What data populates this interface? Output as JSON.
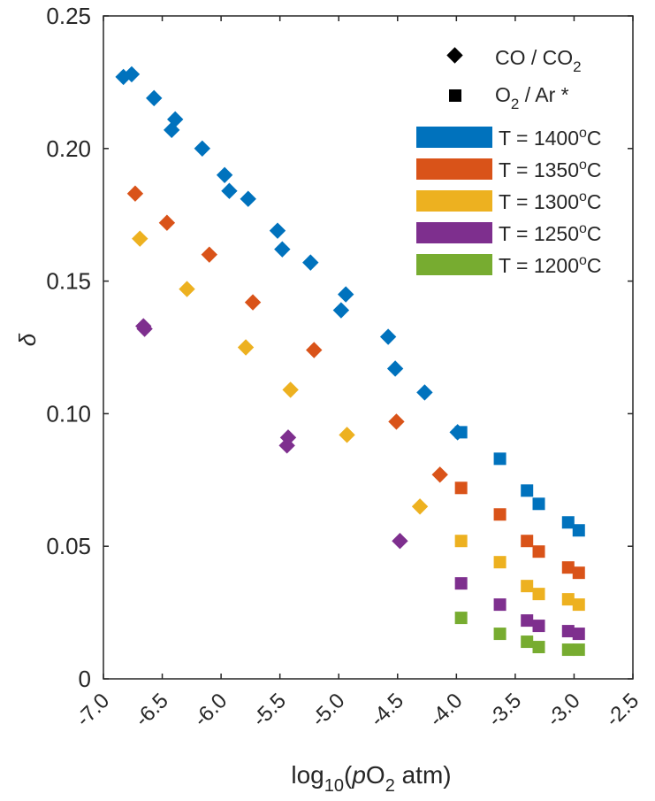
{
  "chart_data": {
    "type": "scatter",
    "xlabel": {
      "prefix": "log",
      "sub1": "10",
      "open": "(",
      "italic": "p",
      "mid": "O",
      "sub2": "2",
      "rest": " atm)"
    },
    "ylabel": "δ",
    "xlim": [
      -7.0,
      -2.5
    ],
    "ylim": [
      0,
      0.25
    ],
    "x_ticks": [
      "-7.0",
      "-6.5",
      "-6.0",
      "-5.5",
      "-5.0",
      "-4.5",
      "-4.0",
      "-3.5",
      "-3.0",
      "-2.5"
    ],
    "x_tick_values": [
      -7.0,
      -6.5,
      -6.0,
      -5.5,
      -5.0,
      -4.5,
      -4.0,
      -3.5,
      -3.0,
      -2.5
    ],
    "y_ticks": [
      "0",
      "0.05",
      "0.10",
      "0.15",
      "0.20",
      "0.25"
    ],
    "y_tick_values": [
      0,
      0.05,
      0.1,
      0.15,
      0.2,
      0.25
    ],
    "grid": false,
    "box": true,
    "legend_position": "top-right",
    "marker_legend": [
      {
        "marker": "diamond",
        "label_main": "CO / CO",
        "label_sub": "2",
        "label_tail": ""
      },
      {
        "marker": "square",
        "label_main": "O",
        "label_sub": "2",
        "label_tail": " / Ar *"
      }
    ],
    "series": [
      {
        "name": "T = 1400°C",
        "label_pre": "T = 1400",
        "label_sup": "o",
        "label_post": "C",
        "color": "#0072BD",
        "diamonds": [
          [
            -6.83,
            0.227
          ],
          [
            -6.76,
            0.228
          ],
          [
            -6.57,
            0.219
          ],
          [
            -6.39,
            0.211
          ],
          [
            -6.42,
            0.207
          ],
          [
            -6.16,
            0.2
          ],
          [
            -5.97,
            0.19
          ],
          [
            -5.93,
            0.184
          ],
          [
            -5.77,
            0.181
          ],
          [
            -5.52,
            0.169
          ],
          [
            -5.48,
            0.162
          ],
          [
            -5.24,
            0.157
          ],
          [
            -4.98,
            0.139
          ],
          [
            -4.94,
            0.145
          ],
          [
            -4.58,
            0.129
          ],
          [
            -4.52,
            0.117
          ],
          [
            -4.27,
            0.108
          ],
          [
            -3.99,
            0.093
          ]
        ],
        "squares": [
          [
            -3.96,
            0.093
          ],
          [
            -3.63,
            0.083
          ],
          [
            -3.4,
            0.071
          ],
          [
            -3.3,
            0.066
          ],
          [
            -3.05,
            0.059
          ],
          [
            -2.96,
            0.056
          ]
        ]
      },
      {
        "name": "T = 1350°C",
        "label_pre": "T = 1350",
        "label_sup": "o",
        "label_post": "C",
        "color": "#D95319",
        "diamonds": [
          [
            -6.73,
            0.183
          ],
          [
            -6.46,
            0.172
          ],
          [
            -6.1,
            0.16
          ],
          [
            -5.73,
            0.142
          ],
          [
            -5.21,
            0.124
          ],
          [
            -4.51,
            0.097
          ],
          [
            -4.14,
            0.077
          ]
        ],
        "squares": [
          [
            -3.96,
            0.072
          ],
          [
            -3.63,
            0.062
          ],
          [
            -3.4,
            0.052
          ],
          [
            -3.3,
            0.048
          ],
          [
            -3.05,
            0.042
          ],
          [
            -2.96,
            0.04
          ]
        ]
      },
      {
        "name": "T = 1300°C",
        "label_pre": "T = 1300",
        "label_sup": "o",
        "label_post": "C",
        "color": "#EDB120",
        "diamonds": [
          [
            -6.69,
            0.166
          ],
          [
            -6.29,
            0.147
          ],
          [
            -5.79,
            0.125
          ],
          [
            -5.41,
            0.109
          ],
          [
            -4.93,
            0.092
          ],
          [
            -4.31,
            0.065
          ]
        ],
        "squares": [
          [
            -3.96,
            0.052
          ],
          [
            -3.63,
            0.044
          ],
          [
            -3.4,
            0.035
          ],
          [
            -3.3,
            0.032
          ],
          [
            -3.05,
            0.03
          ],
          [
            -2.96,
            0.028
          ]
        ]
      },
      {
        "name": "T = 1250°C",
        "label_pre": "T = 1250",
        "label_sup": "o",
        "label_post": "C",
        "color": "#7E2F8E",
        "diamonds": [
          [
            -6.66,
            0.133
          ],
          [
            -6.65,
            0.132
          ],
          [
            -5.43,
            0.091
          ],
          [
            -5.44,
            0.088
          ],
          [
            -4.48,
            0.052
          ]
        ],
        "squares": [
          [
            -3.96,
            0.036
          ],
          [
            -3.63,
            0.028
          ],
          [
            -3.4,
            0.022
          ],
          [
            -3.3,
            0.02
          ],
          [
            -3.05,
            0.018
          ],
          [
            -2.96,
            0.017
          ]
        ]
      },
      {
        "name": "T = 1200°C",
        "label_pre": "T = 1200",
        "label_sup": "o",
        "label_post": "C",
        "color": "#77AC30",
        "diamonds": [],
        "squares": [
          [
            -3.96,
            0.023
          ],
          [
            -3.63,
            0.017
          ],
          [
            -3.4,
            0.014
          ],
          [
            -3.3,
            0.012
          ],
          [
            -3.05,
            0.011
          ],
          [
            -2.96,
            0.011
          ]
        ]
      }
    ]
  }
}
